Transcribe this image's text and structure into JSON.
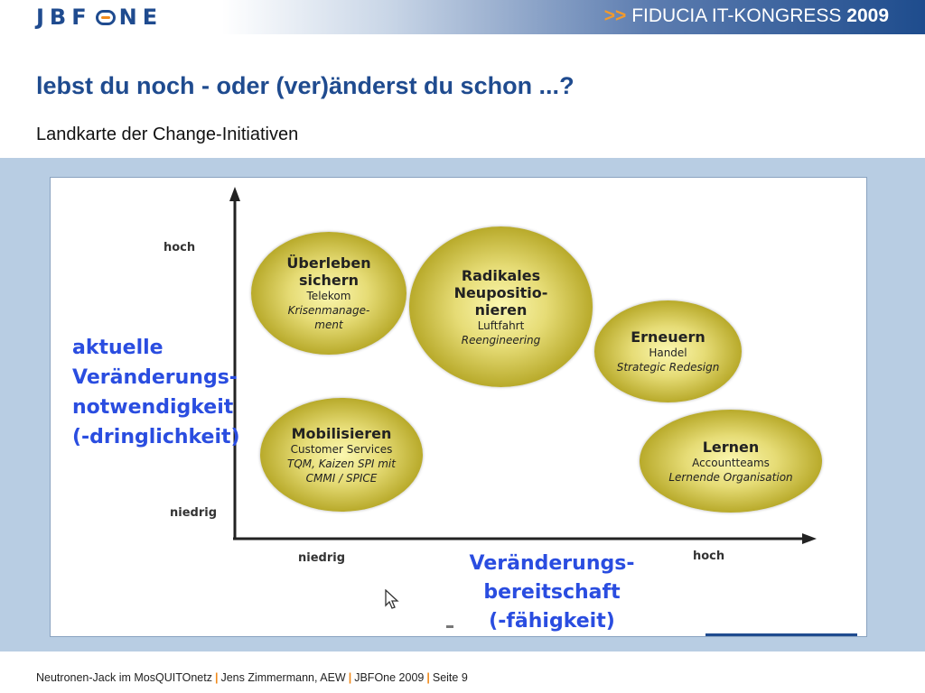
{
  "header": {
    "logo_text_left": "JBF",
    "logo_text_right": "NE",
    "congress_arrows": ">>",
    "congress_text": "FIDUCIA IT-KONGRESS",
    "congress_year": "2009"
  },
  "slide": {
    "title": "lebst du noch - oder (ver)änderst du schon ...?",
    "subtitle": "Landkarte der Change-Initiativen"
  },
  "diagram": {
    "y_axis": {
      "label": "aktuelle\nVeränderungs-\nnotwendigkeit\n(-dringlichkeit)",
      "high": "hoch",
      "low": "niedrig"
    },
    "x_axis": {
      "label": "Veränderungs-\nbereitschaft\n(-fähigkeit)",
      "low": "niedrig",
      "high": "hoch"
    },
    "quadrants": [
      {
        "title": "Überleben\nsichern",
        "line1": "Telekom",
        "line2": "Krisenmanage-\nment"
      },
      {
        "title": "Radikales\nNeupositio-\nnieren",
        "line1": "Luftfahrt",
        "line2": "Reengineering"
      },
      {
        "title": "Erneuern",
        "line1": "Handel",
        "line2": "Strategic Redesign"
      },
      {
        "title": "Mobilisieren",
        "line1": "Customer Services",
        "line2": "TQM, Kaizen SPI mit\nCMMI / SPICE"
      },
      {
        "title": "Lernen",
        "line1": "Accountteams",
        "line2": "Lernende Organisation"
      }
    ]
  },
  "footer": {
    "part1": "Neutronen-Jack im MosQUITOnetz",
    "part2": "Jens Zimmermann, AEW",
    "part3": "JBFOne 2009",
    "part4": "Seite 9",
    "separator": "|"
  },
  "colors": {
    "brand_blue": "#1f4b8f",
    "accent_orange": "#f08a1c",
    "label_blue": "#2a4de0",
    "panel_blue": "#b8cde3"
  }
}
